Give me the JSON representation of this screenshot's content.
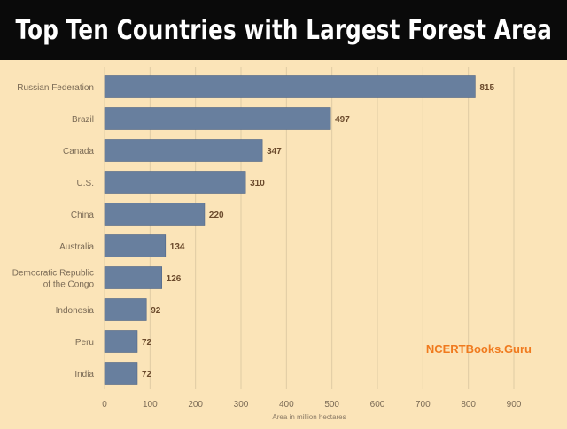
{
  "header": {
    "title": "Top Ten Countries with Largest Forest Area"
  },
  "watermark": "NCERTBooks.Guru",
  "colors": {
    "background": "#fbe4b8",
    "title_bar": "#0a0a0a",
    "bar": "#687f9e",
    "bar_stroke": "#4f6585",
    "grid": "#dfcba4",
    "tick_text": "#7a6a55",
    "value_text": "#6b4a2c",
    "watermark": "#f07a1e"
  },
  "chart_data": {
    "type": "bar",
    "orientation": "horizontal",
    "title": "Top Ten Countries with Largest Forest Area",
    "xlabel": "Area in million hectares",
    "ylabel": "",
    "xlim": [
      0,
      900
    ],
    "xticks": [
      0,
      100,
      200,
      300,
      400,
      500,
      600,
      700,
      800,
      900
    ],
    "grid": true,
    "categories": [
      "Russian Federation",
      "Brazil",
      "Canada",
      "U.S.",
      "China",
      "Australia",
      "Democratic Republic of the Congo",
      "Indonesia",
      "Peru",
      "India"
    ],
    "category_lines": [
      [
        "Russian Federation"
      ],
      [
        "Brazil"
      ],
      [
        "Canada"
      ],
      [
        "U.S."
      ],
      [
        "China"
      ],
      [
        "Australia"
      ],
      [
        "Democratic Republic",
        "of the Congo"
      ],
      [
        "Indonesia"
      ],
      [
        "Peru"
      ],
      [
        "India"
      ]
    ],
    "values": [
      815,
      497,
      347,
      310,
      220,
      134,
      126,
      92,
      72,
      72
    ]
  }
}
